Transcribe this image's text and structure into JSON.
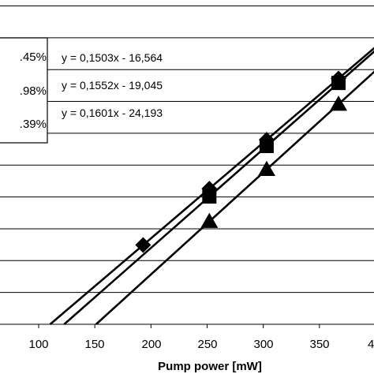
{
  "chart_data": {
    "type": "scatter",
    "title": "",
    "xlabel": "Pump power [mW]",
    "ylabel": "",
    "xlim": [
      100,
      400
    ],
    "ylim": [
      0,
      50
    ],
    "x_ticks": [
      "100",
      "150",
      "200",
      "250",
      "300",
      "350",
      "4"
    ],
    "grid": true,
    "series": [
      {
        "marker": "diamond",
        "slope_label": ".45%",
        "equation": "y = 0,1503x - 16,564",
        "slope": 0.1503,
        "intercept": -16.564,
        "x": [
          193,
          252,
          303,
          367
        ],
        "y": [
          12.45,
          21.3,
          28.98,
          38.6
        ]
      },
      {
        "marker": "square",
        "slope_label": ".98%",
        "equation": "y = 0,1552x - 19,045",
        "slope": 0.1552,
        "intercept": -19.045,
        "x": [
          252,
          303,
          367
        ],
        "y": [
          20.07,
          28.0,
          37.9
        ]
      },
      {
        "marker": "triangle",
        "slope_label": ".39%",
        "equation": "y = 0,1601x - 24,193",
        "slope": 0.1601,
        "intercept": -24.193,
        "x": [
          252,
          303,
          367
        ],
        "y": [
          16.15,
          24.32,
          34.56
        ]
      }
    ]
  }
}
